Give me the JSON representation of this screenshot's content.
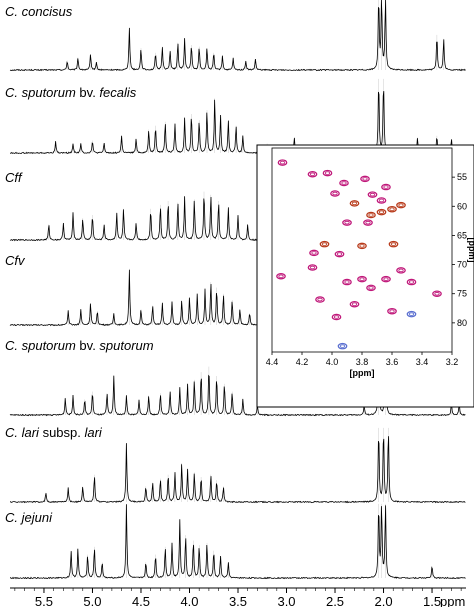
{
  "chart_data": [
    {
      "type": "line",
      "title": "",
      "xlabel": "ppm",
      "xlim": [
        5.85,
        1.15
      ],
      "x_ticks": [
        "5.5",
        "5.0",
        "4.5",
        "4.0",
        "3.5",
        "3.0",
        "2.5",
        "2.0",
        "1.5"
      ],
      "x_unit": "ppm",
      "series": [
        {
          "name": "C. concisus",
          "label_parts": [
            {
              "text": "C. concisus",
              "italic": true
            }
          ],
          "peaks": [
            {
              "x": 5.26,
              "h": 0.12
            },
            {
              "x": 5.15,
              "h": 0.16
            },
            {
              "x": 5.02,
              "h": 0.2
            },
            {
              "x": 4.96,
              "h": 0.1
            },
            {
              "x": 4.62,
              "h": 0.55
            },
            {
              "x": 4.5,
              "h": 0.28
            },
            {
              "x": 4.35,
              "h": 0.22
            },
            {
              "x": 4.28,
              "h": 0.3
            },
            {
              "x": 4.2,
              "h": 0.25
            },
            {
              "x": 4.12,
              "h": 0.35
            },
            {
              "x": 4.05,
              "h": 0.4
            },
            {
              "x": 3.98,
              "h": 0.32
            },
            {
              "x": 3.9,
              "h": 0.3
            },
            {
              "x": 3.82,
              "h": 0.28
            },
            {
              "x": 3.75,
              "h": 0.22
            },
            {
              "x": 3.66,
              "h": 0.18
            },
            {
              "x": 3.55,
              "h": 0.15
            },
            {
              "x": 3.42,
              "h": 0.12
            },
            {
              "x": 3.32,
              "h": 0.14
            },
            {
              "x": 2.05,
              "h": 0.95
            },
            {
              "x": 2.02,
              "h": 0.95
            },
            {
              "x": 1.98,
              "h": 0.95
            },
            {
              "x": 1.45,
              "h": 0.45
            },
            {
              "x": 1.38,
              "h": 0.4
            }
          ]
        },
        {
          "name": "C. sputorum bv. fecalis",
          "label_parts": [
            {
              "text": "C. sputorum",
              "italic": true
            },
            {
              "text": " bv. ",
              "italic": false
            },
            {
              "text": "fecalis",
              "italic": true
            }
          ],
          "peaks": [
            {
              "x": 5.38,
              "h": 0.15
            },
            {
              "x": 5.2,
              "h": 0.12
            },
            {
              "x": 5.12,
              "h": 0.12
            },
            {
              "x": 5.0,
              "h": 0.16
            },
            {
              "x": 4.88,
              "h": 0.13
            },
            {
              "x": 4.7,
              "h": 0.22
            },
            {
              "x": 4.55,
              "h": 0.18
            },
            {
              "x": 4.42,
              "h": 0.3
            },
            {
              "x": 4.35,
              "h": 0.35
            },
            {
              "x": 4.25,
              "h": 0.4
            },
            {
              "x": 4.15,
              "h": 0.38
            },
            {
              "x": 4.05,
              "h": 0.45
            },
            {
              "x": 3.98,
              "h": 0.5
            },
            {
              "x": 3.9,
              "h": 0.42
            },
            {
              "x": 3.82,
              "h": 0.55
            },
            {
              "x": 3.74,
              "h": 0.7
            },
            {
              "x": 3.68,
              "h": 0.48
            },
            {
              "x": 3.6,
              "h": 0.42
            },
            {
              "x": 3.52,
              "h": 0.35
            },
            {
              "x": 3.45,
              "h": 0.22
            },
            {
              "x": 3.2,
              "h": 0.12
            },
            {
              "x": 2.92,
              "h": 0.2
            },
            {
              "x": 2.05,
              "h": 0.95
            },
            {
              "x": 2.0,
              "h": 0.95
            },
            {
              "x": 1.65,
              "h": 0.2
            },
            {
              "x": 1.45,
              "h": 0.22
            },
            {
              "x": 1.3,
              "h": 0.18
            }
          ]
        },
        {
          "name": "Cff",
          "label_parts": [
            {
              "text": "Cff",
              "italic": true
            }
          ],
          "peaks": [
            {
              "x": 5.45,
              "h": 0.2
            },
            {
              "x": 5.3,
              "h": 0.22
            },
            {
              "x": 5.2,
              "h": 0.35
            },
            {
              "x": 5.1,
              "h": 0.28
            },
            {
              "x": 5.0,
              "h": 0.32
            },
            {
              "x": 4.88,
              "h": 0.2
            },
            {
              "x": 4.75,
              "h": 0.35
            },
            {
              "x": 4.68,
              "h": 0.4
            },
            {
              "x": 4.55,
              "h": 0.22
            },
            {
              "x": 4.4,
              "h": 0.4
            },
            {
              "x": 4.3,
              "h": 0.45
            },
            {
              "x": 4.22,
              "h": 0.5
            },
            {
              "x": 4.12,
              "h": 0.48
            },
            {
              "x": 4.05,
              "h": 0.55
            },
            {
              "x": 3.95,
              "h": 0.52
            },
            {
              "x": 3.85,
              "h": 0.62
            },
            {
              "x": 3.78,
              "h": 0.58
            },
            {
              "x": 3.7,
              "h": 0.5
            },
            {
              "x": 3.6,
              "h": 0.42
            },
            {
              "x": 3.5,
              "h": 0.32
            },
            {
              "x": 3.4,
              "h": 0.2
            }
          ]
        },
        {
          "name": "Cfv",
          "label_parts": [
            {
              "text": "Cfv",
              "italic": true
            }
          ],
          "peaks": [
            {
              "x": 5.25,
              "h": 0.18
            },
            {
              "x": 5.12,
              "h": 0.2
            },
            {
              "x": 5.02,
              "h": 0.28
            },
            {
              "x": 4.95,
              "h": 0.18
            },
            {
              "x": 4.78,
              "h": 0.15
            },
            {
              "x": 4.62,
              "h": 0.72
            },
            {
              "x": 4.5,
              "h": 0.2
            },
            {
              "x": 4.38,
              "h": 0.25
            },
            {
              "x": 4.28,
              "h": 0.28
            },
            {
              "x": 4.18,
              "h": 0.3
            },
            {
              "x": 4.08,
              "h": 0.32
            },
            {
              "x": 4.0,
              "h": 0.35
            },
            {
              "x": 3.92,
              "h": 0.4
            },
            {
              "x": 3.84,
              "h": 0.45
            },
            {
              "x": 3.78,
              "h": 0.55
            },
            {
              "x": 3.72,
              "h": 0.48
            },
            {
              "x": 3.65,
              "h": 0.4
            },
            {
              "x": 3.56,
              "h": 0.32
            },
            {
              "x": 3.48,
              "h": 0.2
            },
            {
              "x": 3.38,
              "h": 0.15
            }
          ]
        },
        {
          "name": "C. sputorum bv. sputorum",
          "label_parts": [
            {
              "text": "C. sputorum",
              "italic": true
            },
            {
              "text": " bv. ",
              "italic": false
            },
            {
              "text": "sputorum",
              "italic": true
            }
          ],
          "peaks": [
            {
              "x": 5.28,
              "h": 0.22
            },
            {
              "x": 5.2,
              "h": 0.25
            },
            {
              "x": 5.08,
              "h": 0.2
            },
            {
              "x": 5.0,
              "h": 0.3
            },
            {
              "x": 4.85,
              "h": 0.28
            },
            {
              "x": 4.78,
              "h": 0.5
            },
            {
              "x": 4.65,
              "h": 0.25
            },
            {
              "x": 4.52,
              "h": 0.2
            },
            {
              "x": 4.42,
              "h": 0.25
            },
            {
              "x": 4.3,
              "h": 0.28
            },
            {
              "x": 4.2,
              "h": 0.3
            },
            {
              "x": 4.1,
              "h": 0.35
            },
            {
              "x": 4.02,
              "h": 0.4
            },
            {
              "x": 3.95,
              "h": 0.45
            },
            {
              "x": 3.88,
              "h": 0.55
            },
            {
              "x": 3.8,
              "h": 0.62
            },
            {
              "x": 3.72,
              "h": 0.5
            },
            {
              "x": 3.64,
              "h": 0.4
            },
            {
              "x": 3.56,
              "h": 0.3
            },
            {
              "x": 3.45,
              "h": 0.2
            },
            {
              "x": 3.3,
              "h": 0.12
            },
            {
              "x": 2.2,
              "h": 0.12
            },
            {
              "x": 2.05,
              "h": 0.95
            },
            {
              "x": 1.98,
              "h": 0.95
            },
            {
              "x": 1.3,
              "h": 0.15
            },
            {
              "x": 1.22,
              "h": 0.15
            }
          ]
        },
        {
          "name": "C. lari subsp. lari",
          "label_parts": [
            {
              "text": "C. lari",
              "italic": true
            },
            {
              "text": " subsp. ",
              "italic": false
            },
            {
              "text": "lari",
              "italic": true
            }
          ],
          "peaks": [
            {
              "x": 5.48,
              "h": 0.12
            },
            {
              "x": 5.25,
              "h": 0.18
            },
            {
              "x": 5.1,
              "h": 0.2
            },
            {
              "x": 4.98,
              "h": 0.35
            },
            {
              "x": 4.65,
              "h": 0.75
            },
            {
              "x": 4.45,
              "h": 0.2
            },
            {
              "x": 4.38,
              "h": 0.25
            },
            {
              "x": 4.3,
              "h": 0.3
            },
            {
              "x": 4.22,
              "h": 0.35
            },
            {
              "x": 4.15,
              "h": 0.38
            },
            {
              "x": 4.08,
              "h": 0.5
            },
            {
              "x": 4.02,
              "h": 0.42
            },
            {
              "x": 3.95,
              "h": 0.38
            },
            {
              "x": 3.88,
              "h": 0.32
            },
            {
              "x": 3.78,
              "h": 0.35
            },
            {
              "x": 3.72,
              "h": 0.28
            },
            {
              "x": 3.65,
              "h": 0.2
            },
            {
              "x": 2.05,
              "h": 0.95
            },
            {
              "x": 2.0,
              "h": 0.95
            },
            {
              "x": 1.95,
              "h": 0.95
            }
          ]
        },
        {
          "name": "C. jejuni",
          "label_parts": [
            {
              "text": "C. jejuni",
              "italic": true
            }
          ],
          "peaks": [
            {
              "x": 5.22,
              "h": 0.35
            },
            {
              "x": 5.15,
              "h": 0.38
            },
            {
              "x": 5.05,
              "h": 0.3
            },
            {
              "x": 4.98,
              "h": 0.4
            },
            {
              "x": 4.9,
              "h": 0.2
            },
            {
              "x": 4.65,
              "h": 0.95
            },
            {
              "x": 4.45,
              "h": 0.2
            },
            {
              "x": 4.35,
              "h": 0.3
            },
            {
              "x": 4.25,
              "h": 0.4
            },
            {
              "x": 4.18,
              "h": 0.45
            },
            {
              "x": 4.1,
              "h": 0.75
            },
            {
              "x": 4.04,
              "h": 0.55
            },
            {
              "x": 3.96,
              "h": 0.48
            },
            {
              "x": 3.9,
              "h": 0.42
            },
            {
              "x": 3.82,
              "h": 0.45
            },
            {
              "x": 3.75,
              "h": 0.35
            },
            {
              "x": 3.68,
              "h": 0.28
            },
            {
              "x": 3.6,
              "h": 0.2
            },
            {
              "x": 2.05,
              "h": 0.95
            },
            {
              "x": 2.02,
              "h": 0.95
            },
            {
              "x": 1.98,
              "h": 0.95
            },
            {
              "x": 1.5,
              "h": 0.15
            }
          ]
        }
      ]
    },
    {
      "type": "scatter",
      "title": "",
      "xlabel": "[ppm]",
      "ylabel": "[ppm]",
      "xlim": [
        4.4,
        3.2
      ],
      "ylim": [
        50,
        85
      ],
      "x_ticks": [
        "4.4",
        "4.2",
        "4.0",
        "3.8",
        "3.6",
        "3.4",
        "3.2"
      ],
      "y_ticks": [
        "55",
        "60",
        "65",
        "70",
        "75",
        "80"
      ],
      "colors": {
        "positive": "#c0187a",
        "negative": "#b83a1a",
        "minor": "#5a6fd0"
      },
      "points": [
        {
          "x": 4.33,
          "y": 52.5,
          "c": "positive"
        },
        {
          "x": 4.13,
          "y": 54.5,
          "c": "positive"
        },
        {
          "x": 4.03,
          "y": 54.3,
          "c": "positive"
        },
        {
          "x": 3.92,
          "y": 56.0,
          "c": "positive"
        },
        {
          "x": 3.78,
          "y": 55.3,
          "c": "positive"
        },
        {
          "x": 3.73,
          "y": 58.0,
          "c": "positive"
        },
        {
          "x": 3.64,
          "y": 56.7,
          "c": "positive"
        },
        {
          "x": 3.67,
          "y": 59.0,
          "c": "positive"
        },
        {
          "x": 3.98,
          "y": 57.8,
          "c": "positive"
        },
        {
          "x": 3.85,
          "y": 59.5,
          "c": "negative"
        },
        {
          "x": 3.74,
          "y": 61.5,
          "c": "negative"
        },
        {
          "x": 3.67,
          "y": 61.0,
          "c": "negative"
        },
        {
          "x": 3.6,
          "y": 60.5,
          "c": "negative"
        },
        {
          "x": 3.54,
          "y": 59.8,
          "c": "negative"
        },
        {
          "x": 3.9,
          "y": 62.8,
          "c": "positive"
        },
        {
          "x": 3.76,
          "y": 62.8,
          "c": "positive"
        },
        {
          "x": 4.05,
          "y": 66.5,
          "c": "negative"
        },
        {
          "x": 3.8,
          "y": 66.8,
          "c": "negative"
        },
        {
          "x": 3.59,
          "y": 66.5,
          "c": "negative"
        },
        {
          "x": 4.12,
          "y": 68.0,
          "c": "positive"
        },
        {
          "x": 3.95,
          "y": 68.2,
          "c": "positive"
        },
        {
          "x": 4.34,
          "y": 72.0,
          "c": "positive"
        },
        {
          "x": 4.13,
          "y": 70.5,
          "c": "positive"
        },
        {
          "x": 3.9,
          "y": 73.0,
          "c": "positive"
        },
        {
          "x": 3.8,
          "y": 72.5,
          "c": "positive"
        },
        {
          "x": 3.74,
          "y": 74.0,
          "c": "positive"
        },
        {
          "x": 3.64,
          "y": 72.5,
          "c": "positive"
        },
        {
          "x": 3.54,
          "y": 71.0,
          "c": "positive"
        },
        {
          "x": 3.47,
          "y": 73.0,
          "c": "positive"
        },
        {
          "x": 4.08,
          "y": 76.0,
          "c": "positive"
        },
        {
          "x": 3.85,
          "y": 76.8,
          "c": "positive"
        },
        {
          "x": 3.6,
          "y": 78.0,
          "c": "positive"
        },
        {
          "x": 3.3,
          "y": 75.0,
          "c": "positive"
        },
        {
          "x": 3.97,
          "y": 79.0,
          "c": "positive"
        },
        {
          "x": 3.93,
          "y": 84.0,
          "c": "minor"
        },
        {
          "x": 3.47,
          "y": 78.5,
          "c": "minor"
        }
      ]
    }
  ]
}
